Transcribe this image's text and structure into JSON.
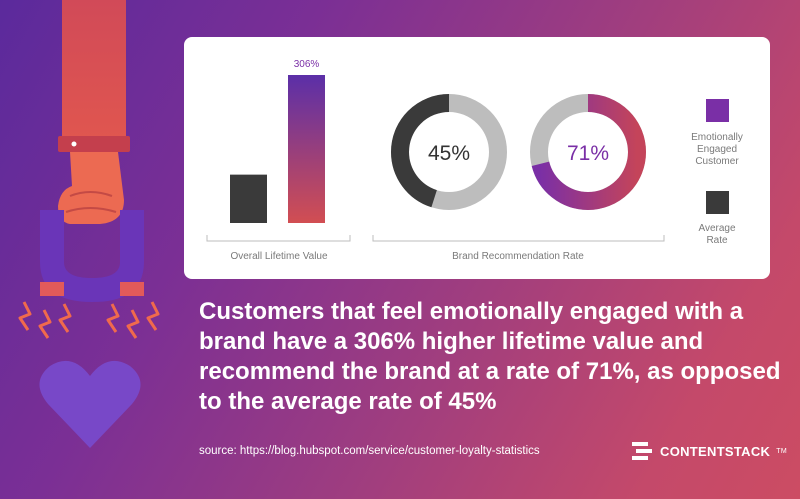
{
  "chart_data": [
    {
      "type": "bar",
      "xlabel": "Overall Lifetime Value",
      "series": [
        {
          "name": "Average Rate",
          "values": [
            100
          ],
          "color": "#3a3a3a",
          "label": ""
        },
        {
          "name": "Emotionally Engaged Customer",
          "values": [
            306
          ],
          "color": "#c0444f",
          "label": "306%"
        }
      ]
    },
    {
      "type": "pie",
      "xlabel": "Brand Recommendation Rate",
      "donuts": [
        {
          "name": "Average Rate",
          "value": 45,
          "label": "45%",
          "color": "#3a3a3a",
          "rest_color": "#bdbdbd"
        },
        {
          "name": "Emotionally Engaged Customer",
          "value": 71,
          "label": "71%",
          "color": "#8a2aa5",
          "rest_color": "#bdbdbd"
        }
      ]
    }
  ],
  "legend": {
    "engaged": "Emotionally\nEngaged\nCustomer",
    "average": "Average\nRate"
  },
  "headline": "Customers that feel emotionally engaged with a brand have a 306% higher lifetime value and recommend the brand at a rate of 71%, as opposed to the average rate of 45%",
  "source": "source: https://blog.hubspot.com/service/customer-loyalty-statistics",
  "brand": {
    "name": "CONTENTSTACK",
    "tm": "TM"
  },
  "colors": {
    "bar_gradient_top": "#5b2fa8",
    "bar_gradient_bottom": "#d24e52",
    "purple": "#7a2fa6"
  }
}
